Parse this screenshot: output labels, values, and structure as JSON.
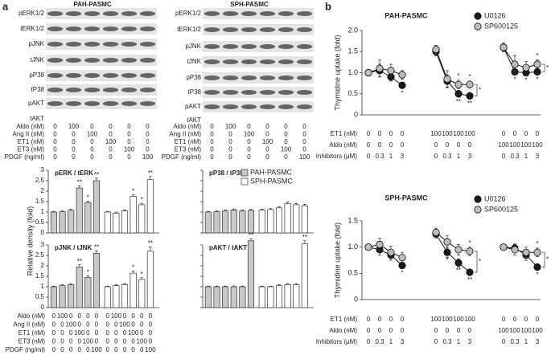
{
  "panel_labels": [
    "a",
    "b"
  ],
  "blots": [
    {
      "title": "PAH-PASMC",
      "proteins": [
        "pERK1/2",
        "tERK1/2",
        "pJNK",
        "tJNK",
        "pP38",
        "tP38",
        "pAKT",
        "tAKT"
      ],
      "treatments": [
        {
          "label": "Aldo (nM)",
          "values": [
            0,
            100,
            0,
            0,
            0,
            0
          ]
        },
        {
          "label": "Ang II (nM)",
          "values": [
            0,
            0,
            100,
            0,
            0,
            0
          ]
        },
        {
          "label": "ET1 (nM)",
          "values": [
            0,
            0,
            0,
            100,
            0,
            0
          ]
        },
        {
          "label": "ET3 (nM)",
          "values": [
            0,
            0,
            0,
            0,
            100,
            0
          ]
        },
        {
          "label": "PDGF (ng/ml)",
          "values": [
            0,
            0,
            0,
            0,
            0,
            100
          ]
        }
      ]
    },
    {
      "title": "SPH-PASMC",
      "proteins": [
        "pERK1/2",
        "tERK1/2",
        "pJNK",
        "tJNK",
        "pP38",
        "tP38",
        "pAKT",
        "tAKT"
      ],
      "treatments": [
        {
          "label": "Aldo (nM)",
          "values": [
            0,
            100,
            0,
            0,
            0,
            0
          ]
        },
        {
          "label": "Ang II (nM)",
          "values": [
            0,
            0,
            100,
            0,
            0,
            0
          ]
        },
        {
          "label": "ET1 (nM)",
          "values": [
            0,
            0,
            0,
            100,
            0,
            0
          ]
        },
        {
          "label": "ET3 (nM)",
          "values": [
            0,
            0,
            0,
            0,
            100,
            0
          ]
        },
        {
          "label": "PDGF (ng/ml)",
          "values": [
            0,
            0,
            0,
            0,
            0,
            100
          ]
        }
      ]
    }
  ],
  "treatment_table": [
    {
      "label": "Aldo (nM)",
      "values": [
        0,
        100,
        0,
        0,
        0,
        0,
        0,
        100,
        0,
        0,
        0,
        0
      ]
    },
    {
      "label": "Ang II (nM)",
      "values": [
        0,
        0,
        100,
        0,
        0,
        0,
        0,
        0,
        100,
        0,
        0,
        0
      ]
    },
    {
      "label": "ET1 (nM)",
      "values": [
        0,
        0,
        0,
        100,
        0,
        0,
        0,
        0,
        0,
        100,
        0,
        0
      ]
    },
    {
      "label": "ET3 (nM)",
      "values": [
        0,
        0,
        0,
        0,
        100,
        0,
        0,
        0,
        0,
        0,
        100,
        0
      ]
    },
    {
      "label": "PDGF (ng/ml)",
      "values": [
        0,
        0,
        0,
        0,
        0,
        100,
        0,
        0,
        0,
        0,
        0,
        100
      ]
    }
  ],
  "chart_data": [
    {
      "type": "bar",
      "title": "pERK / tERK",
      "y_label": "Relative density (fold)",
      "ylim": [
        0,
        3
      ],
      "yticks": [
        0,
        0.5,
        1,
        1.5,
        2,
        2.5,
        3
      ],
      "series": [
        {
          "color": "#c8c8c8",
          "values": [
            1,
            1.02,
            1.08,
            2.15,
            1.45,
            2.5
          ],
          "errors": [
            0.03,
            0.05,
            0.05,
            0.1,
            0.07,
            0.12
          ],
          "labels": [
            null,
            null,
            null,
            "**",
            "*",
            "**"
          ]
        },
        {
          "color": "#ffffff",
          "values": [
            1,
            0.95,
            1.05,
            1.75,
            1.35,
            2.55
          ],
          "errors": [
            0.03,
            0.05,
            0.05,
            0.08,
            0.07,
            0.15
          ],
          "labels": [
            null,
            null,
            null,
            "*",
            "*",
            "**"
          ]
        }
      ]
    },
    {
      "type": "bar",
      "title": "pP38 / tP38",
      "ylim": [
        0,
        3
      ],
      "yticks": [
        0,
        0.5,
        1,
        1.5,
        2,
        2.5,
        3
      ],
      "series": [
        {
          "name": "PAH-PASMC",
          "color": "#c8c8c8",
          "values": [
            1,
            1.02,
            1.05,
            1.1,
            1.05,
            1.08
          ],
          "errors": [
            0.03,
            0.04,
            0.04,
            0.05,
            0.04,
            0.04
          ],
          "labels": [
            null,
            null,
            null,
            null,
            null,
            null
          ]
        },
        {
          "name": "SPH-PASMC",
          "color": "#ffffff",
          "values": [
            1.1,
            1.12,
            1.2,
            1.4,
            1.35,
            1.3
          ],
          "errors": [
            0.04,
            0.05,
            0.06,
            0.08,
            0.06,
            0.07
          ],
          "labels": [
            null,
            null,
            null,
            null,
            null,
            null
          ]
        }
      ]
    },
    {
      "type": "bar",
      "title": "pJNK / tJNK",
      "ylim": [
        0,
        3
      ],
      "yticks": [
        0,
        0.5,
        1,
        1.5,
        2,
        2.5,
        3
      ],
      "series": [
        {
          "color": "#c8c8c8",
          "values": [
            1,
            1.05,
            1.1,
            1.95,
            1.45,
            2.6
          ],
          "errors": [
            0.03,
            0.05,
            0.05,
            0.1,
            0.07,
            0.12
          ],
          "labels": [
            null,
            null,
            null,
            "**",
            "*",
            "**"
          ]
        },
        {
          "color": "#ffffff",
          "values": [
            1,
            1.05,
            1.1,
            1.65,
            1.35,
            2.7
          ],
          "errors": [
            0.03,
            0.05,
            0.05,
            0.1,
            0.08,
            0.2
          ],
          "labels": [
            null,
            null,
            null,
            "*",
            "*",
            "**"
          ]
        }
      ]
    },
    {
      "type": "bar",
      "title": "pAKT / tAKT",
      "ylim": [
        0,
        3
      ],
      "yticks": [
        0,
        0.5,
        1,
        1.5,
        2,
        2.5,
        3
      ],
      "series": [
        {
          "color": "#c8c8c8",
          "values": [
            1,
            1,
            1,
            1,
            1,
            3.2
          ],
          "errors": [
            0.03,
            0.03,
            0.03,
            0.04,
            0.03,
            0.1
          ],
          "labels": [
            null,
            null,
            null,
            null,
            null,
            "**"
          ]
        },
        {
          "color": "#ffffff",
          "values": [
            1,
            1,
            1.05,
            1.1,
            1.1,
            3.05
          ],
          "errors": [
            0.03,
            0.03,
            0.04,
            0.05,
            0.05,
            0.15
          ],
          "labels": [
            null,
            null,
            null,
            null,
            null,
            "**"
          ]
        }
      ]
    },
    {
      "type": "line",
      "title": "PAH-PASMC",
      "y_label": "Thymidine uptake (fold)",
      "ylim": [
        0,
        2
      ],
      "yticks": [
        0,
        0.5,
        {
          "value": 1,
          "label": "1.0"
        },
        1.5,
        {
          "value": 2,
          "label": "2.0"
        }
      ],
      "treatments": [
        {
          "label": "ET1 (nM)",
          "values": [
            0,
            0,
            0,
            0,
            100,
            100,
            100,
            100,
            0,
            0,
            0,
            0
          ]
        },
        {
          "label": "Aldo (nM)",
          "values": [
            0,
            0,
            0,
            0,
            0,
            0,
            0,
            0,
            100,
            100,
            100,
            100
          ]
        },
        {
          "label": "Inhibitors (μM)",
          "values": [
            0,
            0.3,
            1,
            3,
            0,
            0.3,
            1,
            3,
            0,
            0.3,
            1,
            3
          ]
        }
      ],
      "series": [
        {
          "name": "U0126",
          "color": "#1a1a1a",
          "values": [
            1,
            1.05,
            0.9,
            0.7,
            1.5,
            0.8,
            0.5,
            0.45,
            1.6,
            1.02,
            1,
            1.02
          ],
          "errors": [
            0.03,
            0.15,
            0.1,
            0.05,
            0.1,
            0.15,
            0.08,
            0.08,
            0.1,
            0.05,
            0.08,
            0.06
          ],
          "labels": [
            null,
            null,
            null,
            "*",
            null,
            "*",
            "**",
            "**",
            null,
            "*",
            "*",
            "*"
          ]
        },
        {
          "name": "SP600125",
          "color": "#bdbdbd",
          "values": [
            1,
            1.1,
            1.05,
            0.95,
            1.55,
            0.85,
            0.72,
            0.72,
            1.6,
            1.2,
            1.12,
            1.2
          ],
          "errors": [
            0.03,
            0.2,
            0.15,
            0.1,
            0.1,
            0.2,
            0.1,
            0.08,
            0.1,
            0.2,
            0.15,
            0.1
          ],
          "labels": [
            null,
            null,
            null,
            null,
            null,
            null,
            "*",
            "*",
            null,
            null,
            null,
            "*"
          ]
        }
      ],
      "bracket_labels": [
        null,
        "*",
        "*"
      ]
    },
    {
      "type": "line",
      "title": "SPH-PASMC",
      "y_label": "Thymidine uptake (fold)",
      "ylim": [
        0,
        1.5
      ],
      "yticks": [
        0,
        0.5,
        {
          "value": 1,
          "label": "1.0"
        },
        1.5
      ],
      "treatments": [
        {
          "label": "ET1 (nM)",
          "values": [
            0,
            0,
            0,
            0,
            100,
            100,
            100,
            100,
            0,
            0,
            0,
            0
          ]
        },
        {
          "label": "Aldo (nM)",
          "values": [
            0,
            0,
            0,
            0,
            0,
            0,
            0,
            0,
            100,
            100,
            100,
            100
          ]
        },
        {
          "label": "Inhibitors (μM)",
          "values": [
            0,
            0.3,
            1,
            3,
            0,
            0.3,
            1,
            3,
            0,
            0.3,
            1,
            3
          ]
        }
      ],
      "series": [
        {
          "name": "U0126",
          "color": "#1a1a1a",
          "values": [
            1,
            0.95,
            0.85,
            0.65,
            1.25,
            0.9,
            0.7,
            0.52,
            1,
            0.98,
            0.85,
            0.62
          ],
          "errors": [
            0.03,
            0.1,
            0.1,
            0.06,
            0.08,
            0.1,
            0.08,
            0.05,
            0.05,
            0.08,
            0.1,
            0.06
          ],
          "labels": [
            null,
            null,
            null,
            "*",
            null,
            "*",
            "**",
            "**",
            null,
            null,
            null,
            "*"
          ]
        },
        {
          "name": "SP600125",
          "color": "#bdbdbd",
          "values": [
            1,
            1.05,
            0.9,
            0.8,
            1.28,
            1.1,
            0.95,
            0.92,
            1,
            0.95,
            0.9,
            0.9
          ],
          "errors": [
            0.03,
            0.12,
            0.12,
            0.1,
            0.08,
            0.12,
            0.1,
            0.08,
            0.05,
            0.1,
            0.1,
            0.08
          ],
          "labels": [
            null,
            null,
            null,
            null,
            null,
            null,
            null,
            "*",
            null,
            null,
            null,
            "*"
          ]
        }
      ],
      "bracket_labels": [
        null,
        "*",
        "*"
      ]
    }
  ]
}
